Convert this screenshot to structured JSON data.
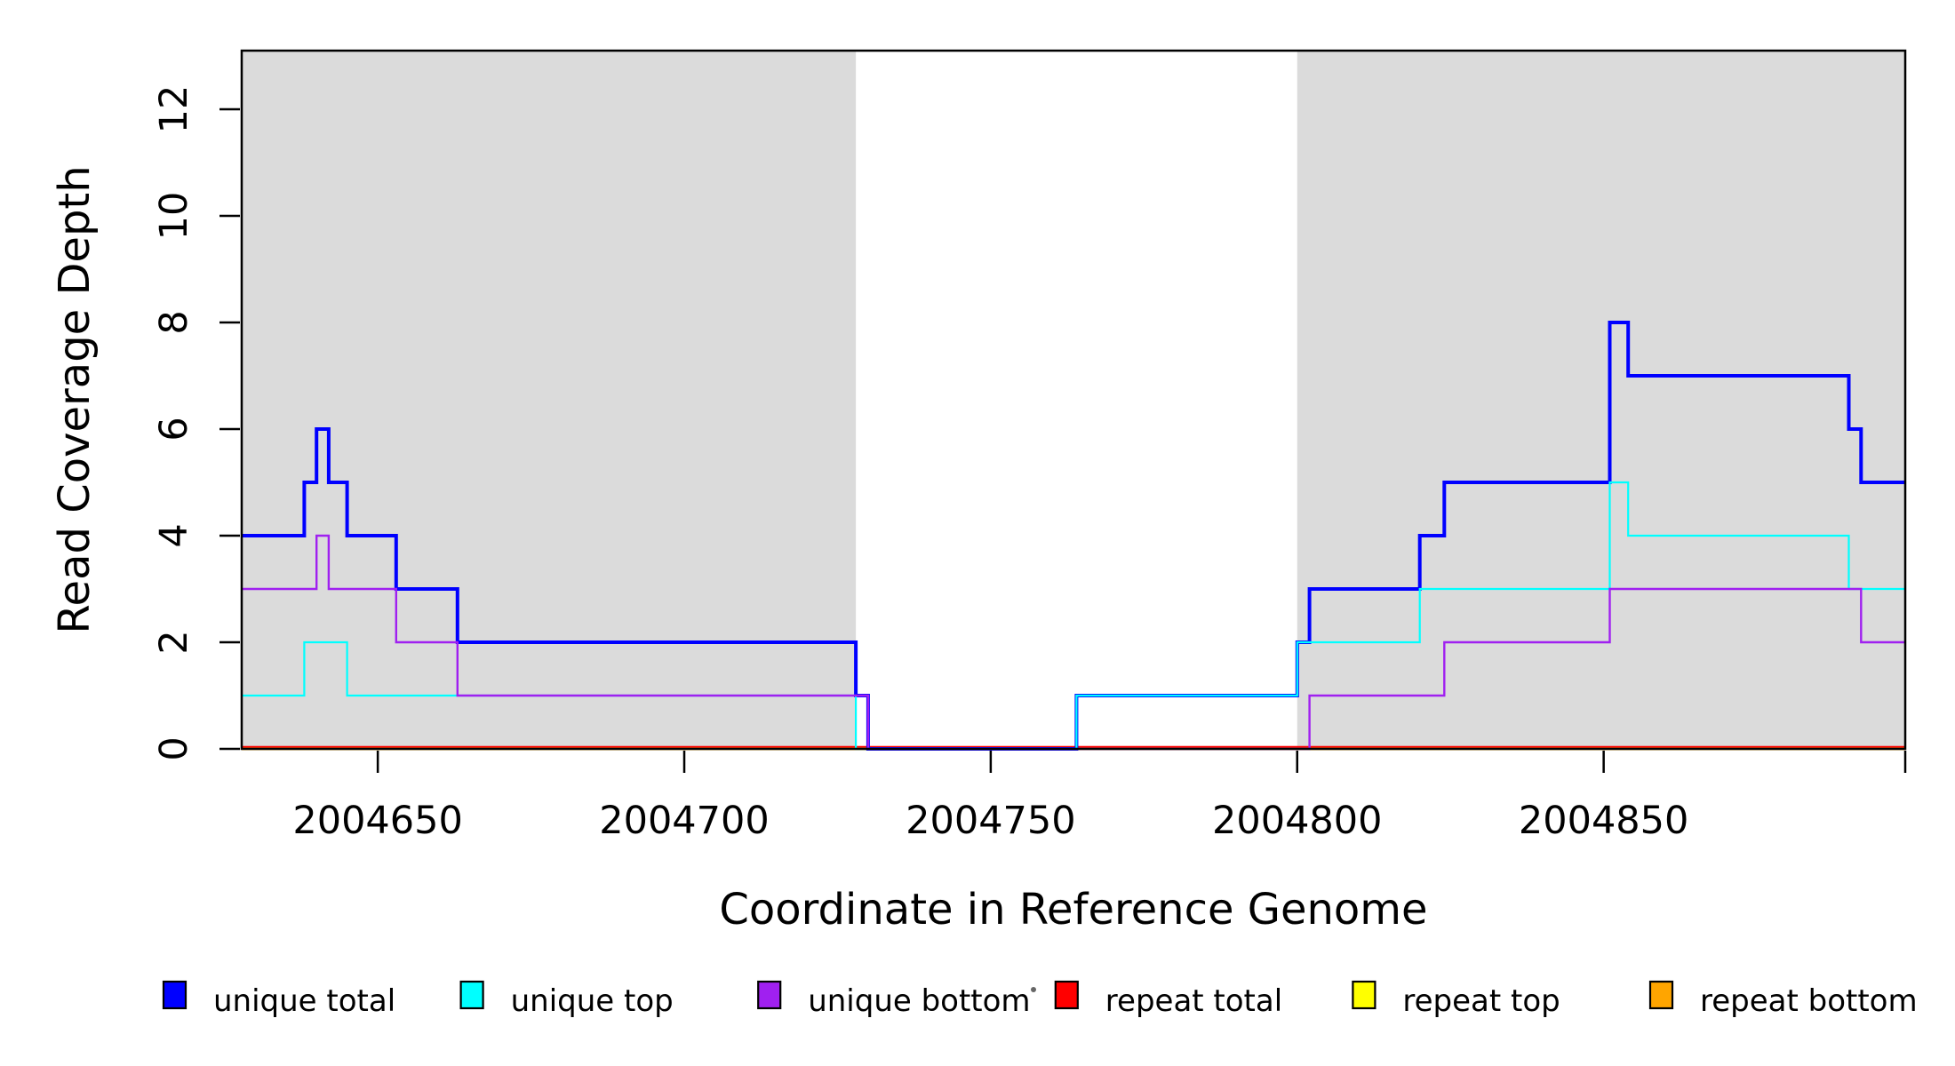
{
  "figure": {
    "background": "#ffffff",
    "band_color": "#dbdbdb",
    "border_color": "#000000",
    "tick_color": "#000000"
  },
  "chart_data": {
    "type": "line",
    "subtype": "step-post-coverage",
    "title": "",
    "xlabel": "Coordinate in Reference Genome",
    "ylabel": "Read Coverage Depth",
    "xlim": [
      2004627.8,
      2004899.2
    ],
    "ylim": [
      0,
      13.1
    ],
    "grid": false,
    "legend_position": "bottom-row",
    "x_ticks": [
      {
        "value": 2004650,
        "label": "2004650"
      },
      {
        "value": 2004700,
        "label": "2004700"
      },
      {
        "value": 2004750,
        "label": "2004750"
      },
      {
        "value": 2004800,
        "label": "2004800"
      },
      {
        "value": 2004850,
        "label": "2004850"
      }
    ],
    "x_edge_tick": 2004899.2,
    "y_ticks": [
      {
        "value": 0,
        "label": "0"
      },
      {
        "value": 2,
        "label": "2"
      },
      {
        "value": 4,
        "label": "4"
      },
      {
        "value": 6,
        "label": "6"
      },
      {
        "value": 8,
        "label": "8"
      },
      {
        "value": 10,
        "label": "10"
      },
      {
        "value": 12,
        "label": "12"
      }
    ],
    "shaded_regions": [
      {
        "x0": 2004627.8,
        "x1": 2004728,
        "meaning": "shaded band"
      },
      {
        "x0": 2004800,
        "x1": 2004899.2,
        "meaning": "shaded band"
      }
    ],
    "series": [
      {
        "name": "unique total",
        "color": "#0000ff",
        "width": 4,
        "dy": 0,
        "points": [
          [
            2004627.8,
            4
          ],
          [
            2004638,
            5
          ],
          [
            2004640,
            6
          ],
          [
            2004642,
            5
          ],
          [
            2004645,
            4
          ],
          [
            2004653,
            3
          ],
          [
            2004663,
            2
          ],
          [
            2004728,
            1
          ],
          [
            2004730,
            0
          ],
          [
            2004764,
            1
          ],
          [
            2004800,
            2
          ],
          [
            2004802,
            3
          ],
          [
            2004820,
            4
          ],
          [
            2004824,
            5
          ],
          [
            2004851,
            8
          ],
          [
            2004854,
            7
          ],
          [
            2004890,
            6
          ],
          [
            2004892,
            5
          ],
          [
            2004899.2,
            5
          ]
        ]
      },
      {
        "name": "unique top",
        "color": "#00ffff",
        "width": 2.2,
        "dy": 0,
        "points": [
          [
            2004627.8,
            1
          ],
          [
            2004638,
            2
          ],
          [
            2004645,
            1
          ],
          [
            2004728,
            0
          ],
          [
            2004764,
            1
          ],
          [
            2004800,
            2
          ],
          [
            2004820,
            3
          ],
          [
            2004851,
            5
          ],
          [
            2004854,
            4
          ],
          [
            2004890,
            3
          ],
          [
            2004899.2,
            3
          ]
        ]
      },
      {
        "name": "unique bottom",
        "color": "#a020f0",
        "width": 2.4,
        "dy": 0,
        "points": [
          [
            2004627.8,
            3
          ],
          [
            2004640,
            4
          ],
          [
            2004642,
            3
          ],
          [
            2004653,
            2
          ],
          [
            2004663,
            1
          ],
          [
            2004730,
            0
          ],
          [
            2004802,
            1
          ],
          [
            2004824,
            2
          ],
          [
            2004851,
            3
          ],
          [
            2004892,
            2
          ],
          [
            2004899.2,
            2
          ]
        ]
      },
      {
        "name": "repeat total",
        "color": "#ff0000",
        "width": 2.4,
        "dy": -2,
        "points": [
          [
            2004627.8,
            0
          ],
          [
            2004899.2,
            0
          ]
        ]
      },
      {
        "name": "repeat top",
        "color": "#ffff00",
        "width": 2.4,
        "dy": 0,
        "points": [
          [
            2004627.8,
            0
          ],
          [
            2004899.2,
            0
          ]
        ]
      },
      {
        "name": "repeat bottom",
        "color": "#ffa500",
        "width": 2.8,
        "dy": 0,
        "points": [
          [
            2004627.8,
            0
          ],
          [
            2004899.2,
            0
          ]
        ]
      }
    ],
    "draw_order": [
      "repeat total",
      "repeat top",
      "repeat bottom",
      "unique total",
      "unique top",
      "unique bottom"
    ]
  },
  "legend": {
    "items": [
      {
        "label": "unique total",
        "color": "#0000ff"
      },
      {
        "label": "unique top",
        "color": "#00ffff"
      },
      {
        "label": "unique bottom",
        "color": "#a020f0"
      },
      {
        "label": "repeat total",
        "color": "#ff0000"
      },
      {
        "label": "repeat top",
        "color": "#ffff00"
      },
      {
        "label": "repeat bottom",
        "color": "#ffa500"
      }
    ],
    "stray_mark": "·"
  }
}
